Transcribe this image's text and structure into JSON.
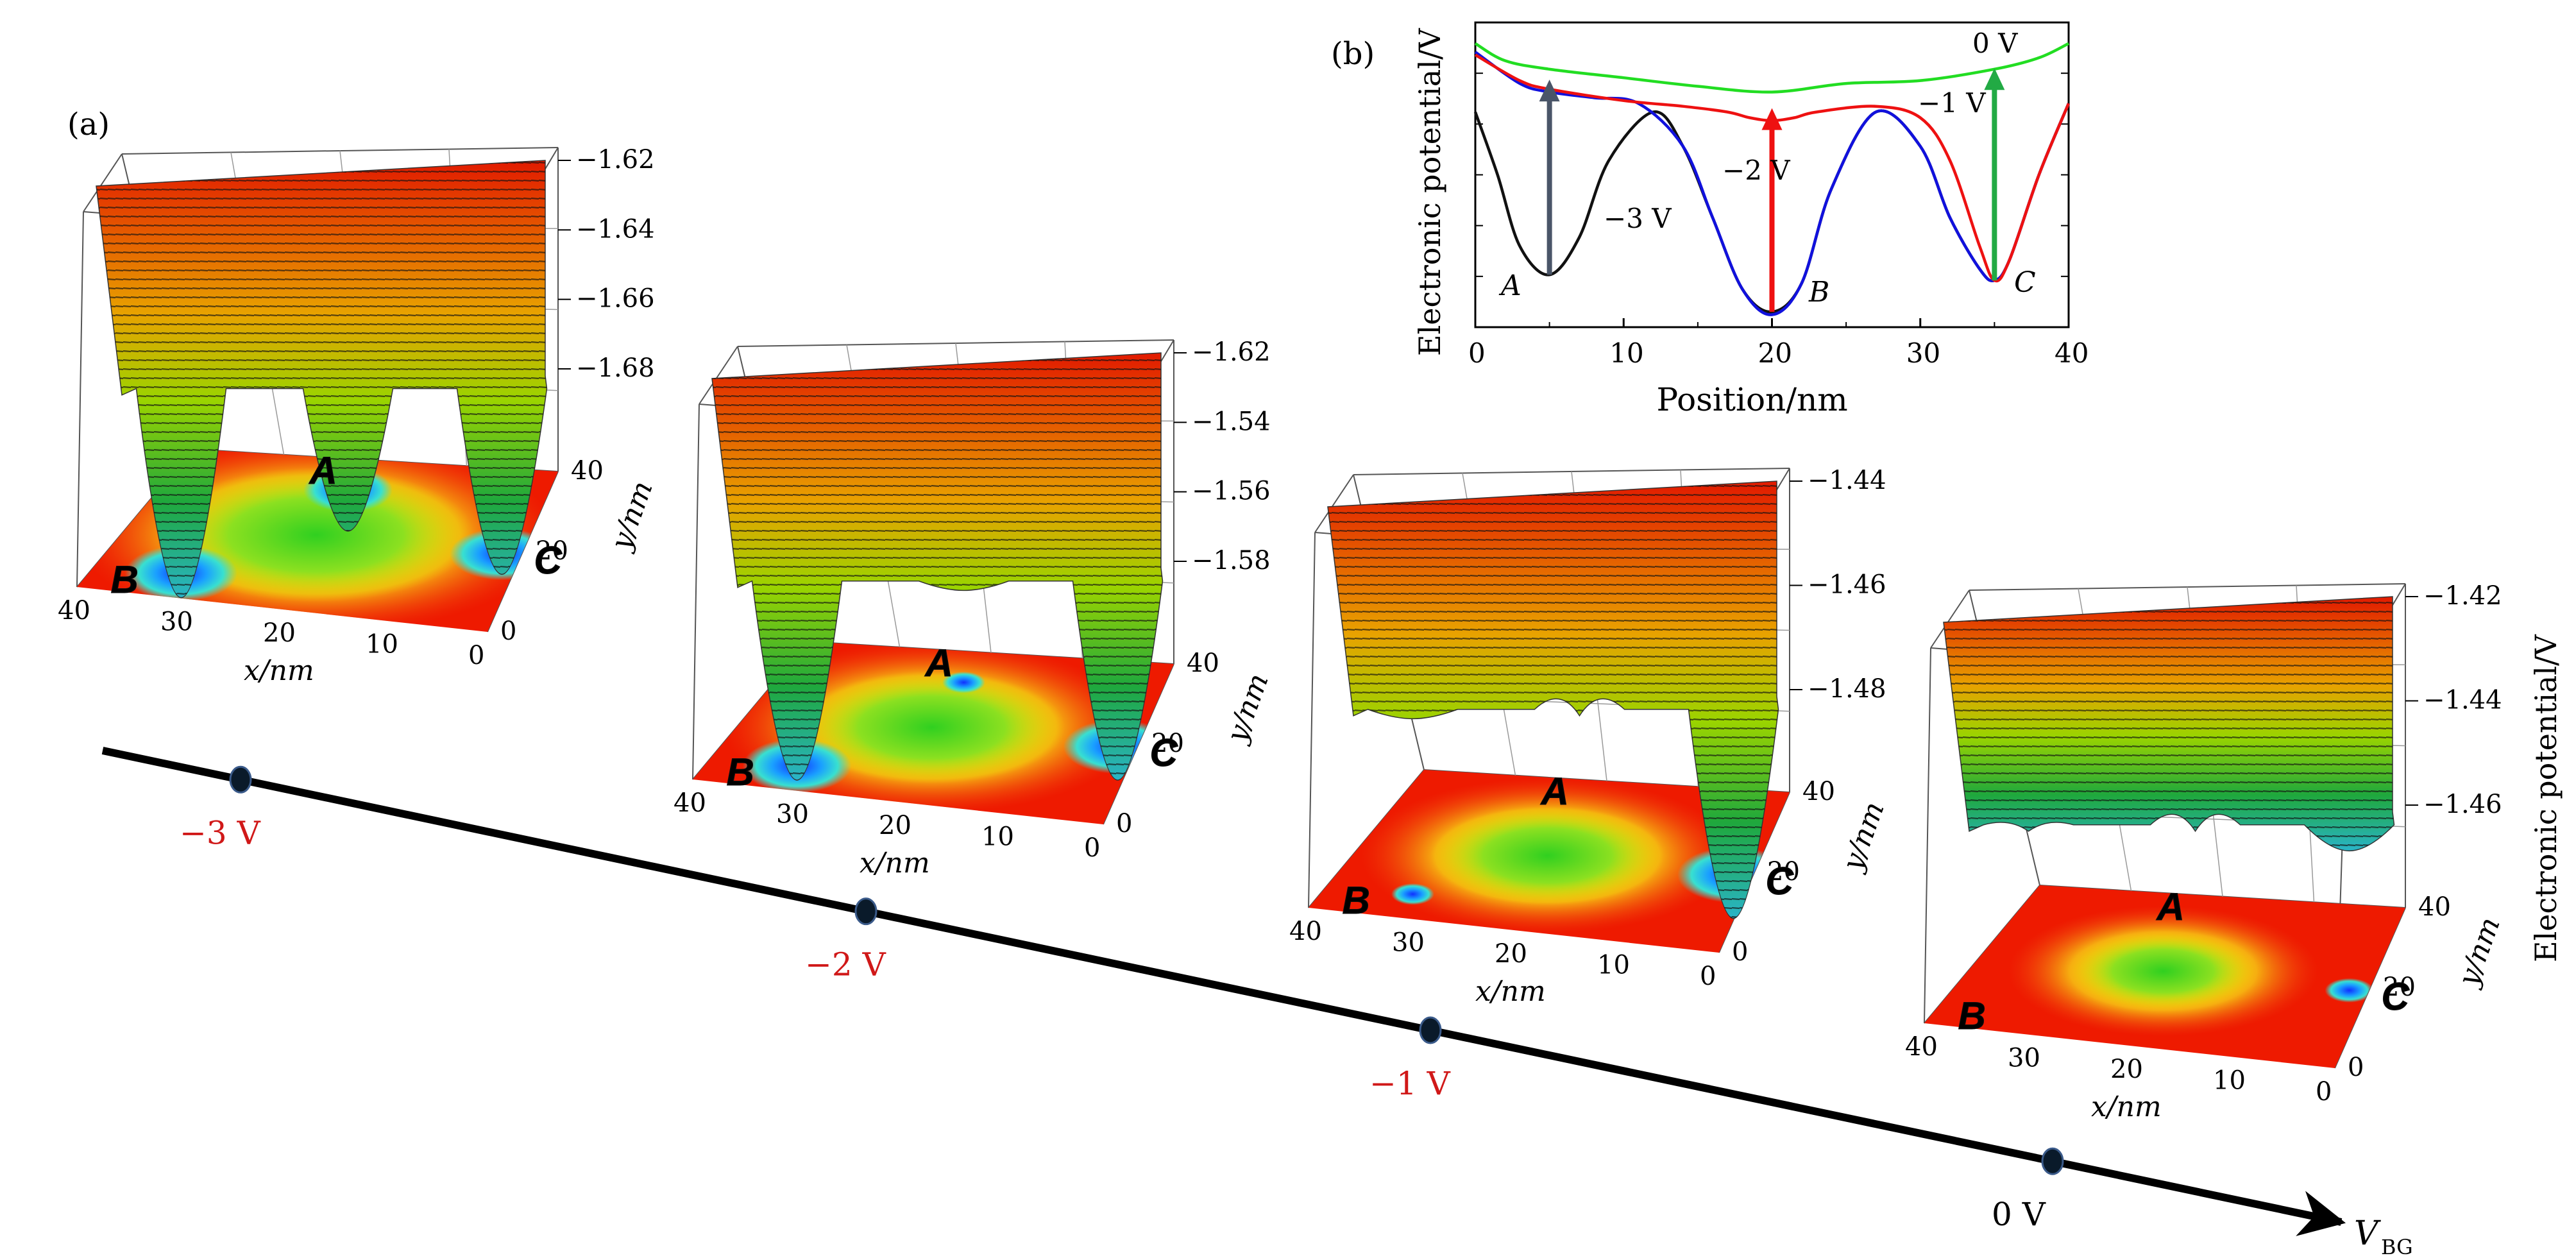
{
  "panel_a": {
    "label": "(a)",
    "axis_x_label": "x/nm",
    "axis_y_label": "y/nm",
    "z_axis_label": "Electronic potential/V",
    "site_labels": [
      "A",
      "B",
      "C"
    ],
    "x_ticks": [
      "40",
      "30",
      "20",
      "10",
      "0"
    ],
    "y_ticks": [
      "0",
      "20",
      "40"
    ],
    "plots": [
      {
        "bias": "−3 V",
        "z_ticks": [
          "−1.62",
          "−1.64",
          "−1.66",
          "−1.68"
        ],
        "dip_depths": [
          0.55,
          0.75,
          0.68
        ]
      },
      {
        "bias": "−2 V",
        "z_ticks": [
          "−1.62",
          "−1.54",
          "−1.56",
          "−1.58"
        ],
        "dip_depths": [
          0.15,
          0.72,
          0.72
        ]
      },
      {
        "bias": "−1 V",
        "z_ticks": [
          "−1.44",
          "−1.46",
          "−1.48"
        ],
        "dip_depths": [
          0.05,
          0.15,
          0.75
        ]
      },
      {
        "bias": "0 V",
        "z_ticks": [
          "−1.42",
          "−1.44",
          "−1.46"
        ],
        "dip_depths": [
          0.05,
          0.1,
          0.2
        ]
      }
    ],
    "axis_label": "V",
    "axis_label_sub": "BG"
  },
  "chart_data": {
    "type": "line",
    "panel": "(b)",
    "xlabel": "Position/nm",
    "ylabel": "Electronic potential/V",
    "xlim": [
      0,
      40
    ],
    "ylim": [
      0,
      1
    ],
    "x_ticks": [
      "0",
      "10",
      "20",
      "30",
      "40"
    ],
    "site_labels": [
      "A",
      "B",
      "C"
    ],
    "series": [
      {
        "name": "0 V",
        "color": "#22dd22",
        "x": [
          0,
          2,
          5,
          10,
          15,
          20,
          25,
          30,
          35,
          38,
          40
        ],
        "y": [
          0.96,
          0.9,
          0.87,
          0.84,
          0.81,
          0.79,
          0.82,
          0.83,
          0.87,
          0.91,
          0.96
        ]
      },
      {
        "name": "−1 V",
        "color": "#ee1111",
        "x": [
          0,
          3,
          5,
          10,
          14,
          17,
          18.5,
          20,
          21.5,
          23,
          27,
          30,
          32,
          34,
          35,
          36,
          38,
          40
        ],
        "y": [
          0.92,
          0.83,
          0.8,
          0.76,
          0.74,
          0.72,
          0.7,
          0.69,
          0.7,
          0.72,
          0.74,
          0.7,
          0.55,
          0.25,
          0.13,
          0.2,
          0.5,
          0.75
        ]
      },
      {
        "name": "−2 V",
        "color": "#1111dd",
        "x": [
          0,
          3,
          5,
          8,
          11,
          14,
          16,
          18,
          20,
          22,
          24,
          27,
          30,
          32,
          34,
          35,
          36,
          38,
          40
        ],
        "y": [
          0.93,
          0.82,
          0.79,
          0.77,
          0.75,
          0.6,
          0.35,
          0.1,
          0.01,
          0.12,
          0.45,
          0.72,
          0.6,
          0.35,
          0.17,
          0.13,
          0.2,
          0.5,
          0.75
        ]
      },
      {
        "name": "−3 V",
        "color": "#111111",
        "x": [
          0,
          1.5,
          3,
          5,
          7,
          9,
          12,
          14,
          16,
          18,
          20,
          22,
          24,
          27,
          30,
          32,
          34,
          35,
          36,
          38,
          40
        ],
        "y": [
          0.72,
          0.5,
          0.25,
          0.15,
          0.28,
          0.55,
          0.72,
          0.6,
          0.35,
          0.1,
          0.02,
          0.12,
          0.45,
          0.72,
          0.6,
          0.35,
          0.17,
          0.13,
          0.2,
          0.5,
          0.75
        ]
      }
    ],
    "arrows": [
      {
        "x": 5,
        "color": "#4a5568"
      },
      {
        "x": 20,
        "color": "#ee1111"
      },
      {
        "x": 35,
        "color": "#22aa44"
      }
    ]
  }
}
